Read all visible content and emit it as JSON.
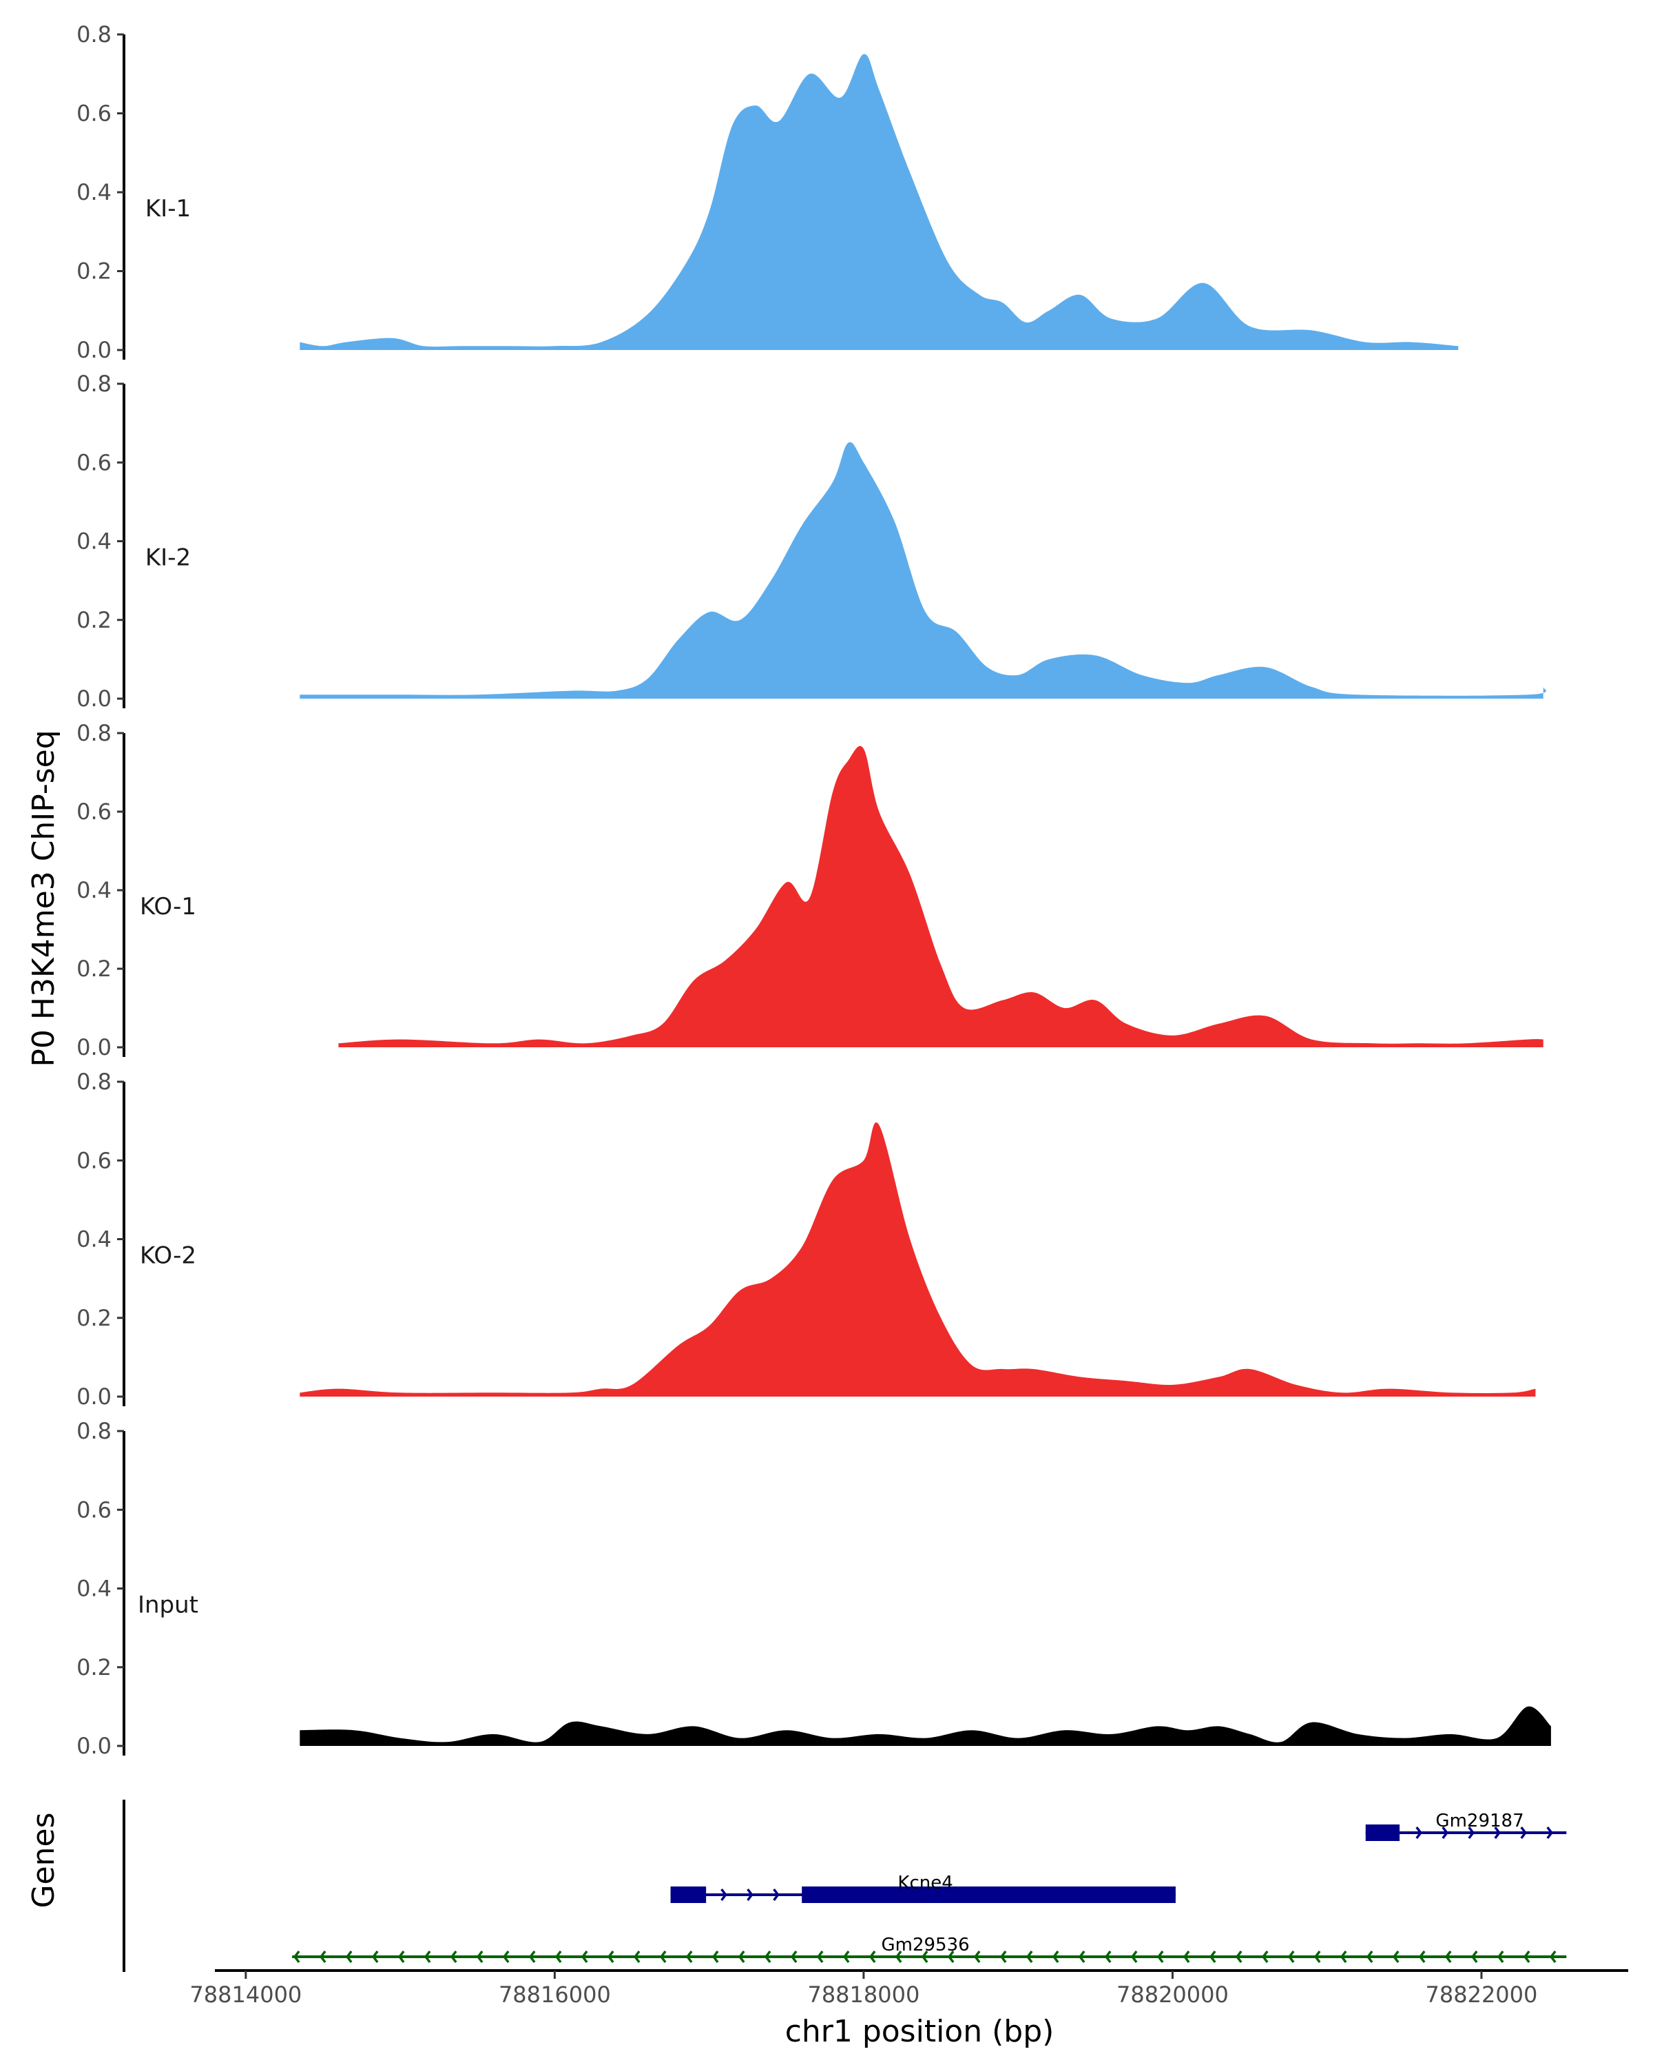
{
  "chart_data": {
    "type": "area",
    "x_axis": {
      "title": "chr1 position (bp)",
      "range": [
        78813800,
        78822950
      ],
      "ticks": [
        78814000,
        78816000,
        78818000,
        78820000,
        78822000
      ],
      "tick_labels": [
        "78814000",
        "78816000",
        "78818000",
        "78820000",
        "78822000"
      ]
    },
    "y_axis": {
      "title": "P0 H3K4me3 ChIP-seq",
      "range": [
        0,
        0.8
      ],
      "ticks": [
        0,
        0.2,
        0.4,
        0.6,
        0.8
      ],
      "tick_labels": [
        "0.0",
        "0.2",
        "0.4",
        "0.6",
        "0.8"
      ]
    },
    "tracks": [
      {
        "name": "KI-1",
        "color": "#5DADEC",
        "x": [
          78814350,
          78814500,
          78814650,
          78814950,
          78815150,
          78815400,
          78815700,
          78816000,
          78816300,
          78816600,
          78816850,
          78817000,
          78817150,
          78817300,
          78817450,
          78817650,
          78817850,
          78818000,
          78818100,
          78818300,
          78818550,
          78818750,
          78818900,
          78819050,
          78819200,
          78819400,
          78819600,
          78819900,
          78820200,
          78820500,
          78820900,
          78821250,
          78821550,
          78821850
        ],
        "y": [
          0.02,
          0.01,
          0.02,
          0.03,
          0.01,
          0.01,
          0.01,
          0.01,
          0.02,
          0.09,
          0.22,
          0.35,
          0.57,
          0.62,
          0.58,
          0.7,
          0.64,
          0.75,
          0.66,
          0.45,
          0.22,
          0.14,
          0.12,
          0.07,
          0.1,
          0.14,
          0.08,
          0.08,
          0.17,
          0.06,
          0.05,
          0.02,
          0.02,
          0.01
        ]
      },
      {
        "name": "KI-2",
        "color": "#5DADEC",
        "x": [
          78814350,
          78814600,
          78815000,
          78815500,
          78816100,
          78816400,
          78816600,
          78816800,
          78817000,
          78817200,
          78817400,
          78817600,
          78817800,
          78817900,
          78818000,
          78818200,
          78818400,
          78818600,
          78818800,
          78819000,
          78819200,
          78819500,
          78819800,
          78820100,
          78820300,
          78820600,
          78820900,
          78821200,
          78822300,
          78822400
        ],
        "y": [
          0.01,
          0.01,
          0.01,
          0.01,
          0.02,
          0.02,
          0.05,
          0.15,
          0.22,
          0.2,
          0.3,
          0.44,
          0.55,
          0.65,
          0.6,
          0.45,
          0.22,
          0.17,
          0.08,
          0.06,
          0.1,
          0.11,
          0.06,
          0.04,
          0.06,
          0.08,
          0.03,
          0.01,
          0.01,
          0.03
        ]
      },
      {
        "name": "KO-1",
        "color": "#EE2C2C",
        "x": [
          78814600,
          78815000,
          78815600,
          78815900,
          78816200,
          78816500,
          78816700,
          78816900,
          78817100,
          78817300,
          78817500,
          78817650,
          78817800,
          78817900,
          78818000,
          78818100,
          78818300,
          78818500,
          78818650,
          78818900,
          78819100,
          78819300,
          78819500,
          78819700,
          78820000,
          78820300,
          78820600,
          78820900,
          78821300,
          78821600,
          78821900,
          78822300,
          78822400
        ],
        "y": [
          0.01,
          0.02,
          0.01,
          0.02,
          0.01,
          0.03,
          0.06,
          0.17,
          0.22,
          0.3,
          0.42,
          0.38,
          0.65,
          0.73,
          0.76,
          0.6,
          0.44,
          0.21,
          0.1,
          0.12,
          0.14,
          0.1,
          0.12,
          0.06,
          0.03,
          0.06,
          0.08,
          0.02,
          0.01,
          0.01,
          0.01,
          0.02,
          0.02
        ]
      },
      {
        "name": "KO-2",
        "color": "#EE2C2C",
        "x": [
          78814350,
          78814600,
          78815000,
          78815600,
          78816100,
          78816300,
          78816500,
          78816800,
          78817000,
          78817200,
          78817400,
          78817600,
          78817800,
          78818000,
          78818100,
          78818300,
          78818500,
          78818700,
          78818900,
          78819100,
          78819400,
          78819700,
          78820000,
          78820300,
          78820500,
          78820800,
          78821100,
          78821400,
          78821800,
          78822200,
          78822350
        ],
        "y": [
          0.01,
          0.02,
          0.01,
          0.01,
          0.01,
          0.02,
          0.03,
          0.13,
          0.18,
          0.27,
          0.3,
          0.38,
          0.55,
          0.6,
          0.69,
          0.4,
          0.2,
          0.08,
          0.07,
          0.07,
          0.05,
          0.04,
          0.03,
          0.05,
          0.07,
          0.03,
          0.01,
          0.02,
          0.01,
          0.01,
          0.02
        ]
      },
      {
        "name": "Input",
        "color": "#000000",
        "x": [
          78814350,
          78814700,
          78815000,
          78815300,
          78815600,
          78815900,
          78816100,
          78816300,
          78816600,
          78816900,
          78817200,
          78817500,
          78817800,
          78818100,
          78818400,
          78818700,
          78819000,
          78819300,
          78819600,
          78819900,
          78820100,
          78820300,
          78820500,
          78820700,
          78820900,
          78821200,
          78821500,
          78821800,
          78822100,
          78822300,
          78822450
        ],
        "y": [
          0.04,
          0.04,
          0.02,
          0.01,
          0.03,
          0.01,
          0.06,
          0.05,
          0.03,
          0.05,
          0.02,
          0.04,
          0.02,
          0.03,
          0.02,
          0.04,
          0.02,
          0.04,
          0.03,
          0.05,
          0.04,
          0.05,
          0.03,
          0.01,
          0.06,
          0.03,
          0.02,
          0.03,
          0.02,
          0.1,
          0.05
        ]
      }
    ],
    "genes_track": {
      "label": "Genes",
      "genes": [
        {
          "name": "Gm29187",
          "strand": "+",
          "color": "#00008B",
          "start": 78821250,
          "end": 78822550,
          "exons": [
            [
              78821250,
              78821470
            ]
          ]
        },
        {
          "name": "Kcne4",
          "strand": "+",
          "color": "#00008B",
          "start": 78816750,
          "end": 78820020,
          "exons": [
            [
              78816750,
              78816980
            ],
            [
              78817600,
              78820020
            ]
          ]
        },
        {
          "name": "Gm29536",
          "strand": "-",
          "color": "#006400",
          "start": 78814300,
          "end": 78822550,
          "exons": []
        }
      ]
    }
  }
}
